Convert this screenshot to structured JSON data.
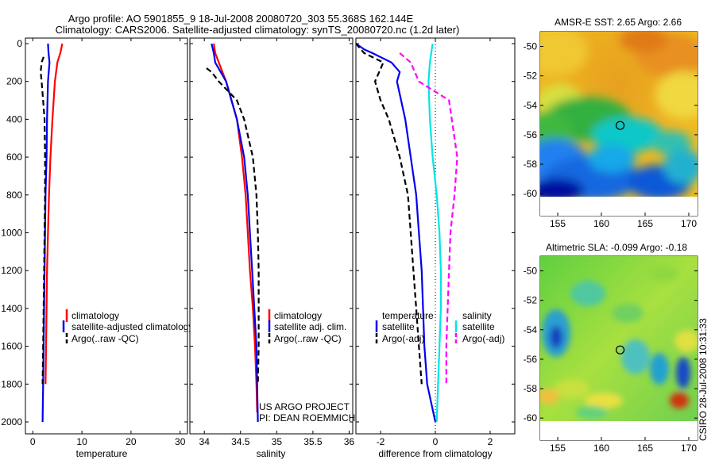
{
  "figure": {
    "title_line1": "Argo profile: AO 5901855_9 18-Jul-2008 20080720_303 55.368S 162.144E",
    "title_line2": "Climatology: CARS2006. Satellite-adjusted climatology: synTS_20080720.nc (1.2d later)",
    "credit": "CSIRO 28-Jul-2008 10:31:33",
    "project_line1": "US ARGO PROJECT",
    "project_line2": "PI: DEAN ROEMMICH"
  },
  "colors": {
    "clim": "#ff0000",
    "sat": "#0000ee",
    "argo": "#000000",
    "cyan": "#00e5e5",
    "magenta": "#ff00ff"
  },
  "chart_data": [
    {
      "type": "line",
      "xlabel": "temperature",
      "ylim": [
        2080,
        0
      ],
      "xlim": [
        -1.5,
        31.5
      ],
      "xticks": [
        0,
        10,
        20,
        30
      ],
      "yticks": [
        0,
        200,
        400,
        600,
        800,
        1000,
        1200,
        1400,
        1600,
        1800,
        2000
      ],
      "legend": [
        "climatology",
        "satellite-adjusted climatology",
        "Argo(..raw -QC)"
      ],
      "series": [
        {
          "name": "climatology",
          "style": "solid",
          "color": "clim",
          "depth": [
            0,
            50,
            100,
            200,
            400,
            600,
            800,
            1000,
            1200,
            1400,
            1600,
            1800
          ],
          "values": [
            6.0,
            5.6,
            5.0,
            4.5,
            4.0,
            3.6,
            3.3,
            3.1,
            2.9,
            2.8,
            2.7,
            2.6
          ]
        },
        {
          "name": "satellite-adjusted climatology",
          "style": "solid",
          "color": "sat",
          "depth": [
            0,
            50,
            100,
            200,
            400,
            600,
            800,
            1000,
            1200,
            1400,
            1600,
            1800,
            2000
          ],
          "values": [
            3.1,
            3.2,
            3.4,
            3.1,
            2.9,
            2.8,
            2.6,
            2.5,
            2.4,
            2.3,
            2.2,
            2.1,
            2.0
          ]
        },
        {
          "name": "Argo(..raw -QC)",
          "style": "dashed",
          "color": "argo",
          "depth": [
            70,
            100,
            150,
            200,
            400,
            600,
            800,
            1000,
            1200,
            1400,
            1600,
            1800
          ],
          "values": [
            2.2,
            1.8,
            1.6,
            1.8,
            2.4,
            2.5,
            2.5,
            2.4,
            2.3,
            2.2,
            2.1,
            2.0
          ]
        }
      ]
    },
    {
      "type": "line",
      "xlabel": "salinity",
      "ylim": [
        2080,
        0
      ],
      "xlim": [
        33.8,
        36.05
      ],
      "xticks": [
        34,
        34.5,
        35,
        35.5,
        36
      ],
      "legend": [
        "climatology",
        "satellite adj. clim.",
        "Argo(..raw -QC)"
      ],
      "series": [
        {
          "name": "climatology",
          "style": "solid",
          "color": "clim",
          "depth": [
            0,
            50,
            100,
            200,
            400,
            600,
            800,
            1000,
            1200,
            1400,
            1600,
            1800,
            1950
          ],
          "values": [
            34.13,
            34.15,
            34.2,
            34.3,
            34.45,
            34.52,
            34.57,
            34.6,
            34.63,
            34.67,
            34.7,
            34.72,
            34.73
          ]
        },
        {
          "name": "satellite adj. clim.",
          "style": "solid",
          "color": "sat",
          "depth": [
            0,
            50,
            100,
            200,
            400,
            600,
            800,
            1000,
            1200,
            1400,
            1600,
            1800,
            2000
          ],
          "values": [
            34.1,
            34.13,
            34.15,
            34.3,
            34.45,
            34.55,
            34.6,
            34.63,
            34.66,
            34.69,
            34.72,
            34.73,
            34.74
          ]
        },
        {
          "name": "Argo(..raw -QC)",
          "style": "dashed",
          "color": "argo",
          "depth": [
            130,
            150,
            200,
            300,
            400,
            600,
            800,
            1000,
            1200,
            1400,
            1600,
            1800
          ],
          "values": [
            34.03,
            34.1,
            34.2,
            34.45,
            34.55,
            34.67,
            34.72,
            34.74,
            34.75,
            34.75,
            34.75,
            34.74
          ]
        }
      ]
    },
    {
      "type": "line",
      "xlabel": "difference from climatology",
      "ylim": [
        2080,
        0
      ],
      "xlim": [
        -2.9,
        2.9
      ],
      "xticks": [
        -2,
        0,
        2
      ],
      "xtick_labels": [
        "-2",
        "0",
        "2"
      ],
      "legend_title_left": "temperature",
      "legend_title_right": "salinity",
      "legend": [
        "satellite",
        "Argo(-adj)",
        "satellite",
        "Argo(-adj)"
      ],
      "series": [
        {
          "name": "temperature satellite",
          "style": "solid",
          "color": "sat",
          "depth": [
            0,
            30,
            50,
            100,
            150,
            200,
            400,
            600,
            800,
            1000,
            1200,
            1400,
            1600,
            1800,
            2000
          ],
          "values": [
            -2.9,
            -2.6,
            -2.3,
            -1.6,
            -1.3,
            -1.4,
            -1.1,
            -0.9,
            -0.7,
            -0.6,
            -0.5,
            -0.45,
            -0.4,
            -0.3,
            0
          ]
        },
        {
          "name": "temperature Argo(-adj)",
          "style": "dashed",
          "color": "argo",
          "depth": [
            0,
            50,
            100,
            200,
            300,
            400,
            600,
            800,
            1000,
            1200,
            1400,
            1600,
            1800
          ],
          "values": [
            -2.9,
            -2.6,
            -1.9,
            -2.2,
            -2.0,
            -1.7,
            -1.3,
            -1.0,
            -0.9,
            -0.8,
            -0.7,
            -0.6,
            -0.5
          ]
        },
        {
          "name": "salinity satellite",
          "style": "solid",
          "color": "cyan",
          "depth": [
            0,
            50,
            100,
            200,
            400,
            600,
            800,
            1000,
            1200,
            1400,
            1600,
            1800,
            2000
          ],
          "values": [
            -0.1,
            -0.15,
            -0.2,
            -0.25,
            -0.2,
            -0.1,
            0.05,
            0.15,
            0.2,
            0.2,
            0.15,
            0.1,
            0.05
          ]
        },
        {
          "name": "salinity Argo(-adj)",
          "style": "dashed",
          "color": "magenta",
          "depth": [
            50,
            100,
            200,
            300,
            400,
            600,
            800,
            1000,
            1200,
            1400,
            1600,
            1800
          ],
          "values": [
            -1.3,
            -0.9,
            -0.6,
            0.5,
            0.6,
            0.8,
            0.7,
            0.55,
            0.5,
            0.45,
            0.4,
            0.4
          ]
        }
      ]
    },
    {
      "type": "heatmap",
      "title": "AMSR-E SST: 2.65 Argo: 2.66",
      "xlim": [
        153,
        171
      ],
      "ylim": [
        -61.5,
        -49
      ],
      "xticks": [
        155,
        160,
        165,
        170
      ],
      "yticks": [
        -50,
        -52,
        -54,
        -56,
        -58,
        -60
      ],
      "profile_marker": {
        "lon": 162.144,
        "lat": -55.368
      }
    },
    {
      "type": "heatmap",
      "title": "Altimetric SLA: -0.099 Argo: -0.18",
      "xlim": [
        153,
        171
      ],
      "ylim": [
        -61.5,
        -49
      ],
      "xticks": [
        155,
        160,
        165,
        170
      ],
      "yticks": [
        -50,
        -52,
        -54,
        -56,
        -58,
        -60
      ],
      "profile_marker": {
        "lon": 162.144,
        "lat": -55.368
      }
    }
  ]
}
